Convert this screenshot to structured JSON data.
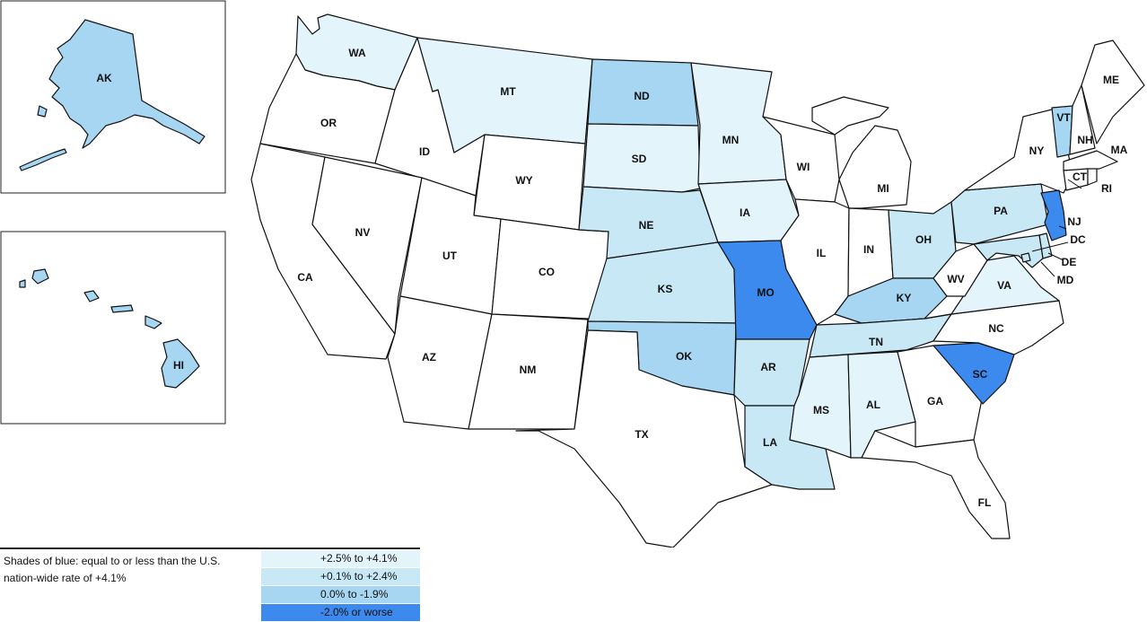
{
  "colors": {
    "tier1": "#e3f4fb",
    "tier2": "#c9e8f6",
    "tier3": "#a6d6f2",
    "tier4": "#3d8aee",
    "none": "#ffffff"
  },
  "states": [
    {
      "abbr": "AK",
      "tier": "tier3"
    },
    {
      "abbr": "HI",
      "tier": "tier3"
    },
    {
      "abbr": "WA",
      "tier": "tier1"
    },
    {
      "abbr": "OR",
      "tier": "none"
    },
    {
      "abbr": "CA",
      "tier": "none"
    },
    {
      "abbr": "ID",
      "tier": "none"
    },
    {
      "abbr": "NV",
      "tier": "none"
    },
    {
      "abbr": "MT",
      "tier": "tier1"
    },
    {
      "abbr": "WY",
      "tier": "none"
    },
    {
      "abbr": "UT",
      "tier": "none"
    },
    {
      "abbr": "CO",
      "tier": "none"
    },
    {
      "abbr": "AZ",
      "tier": "none"
    },
    {
      "abbr": "NM",
      "tier": "none"
    },
    {
      "abbr": "ND",
      "tier": "tier3"
    },
    {
      "abbr": "SD",
      "tier": "tier1"
    },
    {
      "abbr": "NE",
      "tier": "tier2"
    },
    {
      "abbr": "KS",
      "tier": "tier2"
    },
    {
      "abbr": "OK",
      "tier": "tier3"
    },
    {
      "abbr": "TX",
      "tier": "none"
    },
    {
      "abbr": "MN",
      "tier": "tier1"
    },
    {
      "abbr": "IA",
      "tier": "tier1"
    },
    {
      "abbr": "MO",
      "tier": "tier4"
    },
    {
      "abbr": "AR",
      "tier": "tier2"
    },
    {
      "abbr": "LA",
      "tier": "tier2"
    },
    {
      "abbr": "WI",
      "tier": "none"
    },
    {
      "abbr": "IL",
      "tier": "none"
    },
    {
      "abbr": "MI",
      "tier": "none"
    },
    {
      "abbr": "IN",
      "tier": "none"
    },
    {
      "abbr": "OH",
      "tier": "tier2"
    },
    {
      "abbr": "KY",
      "tier": "tier3"
    },
    {
      "abbr": "TN",
      "tier": "tier2"
    },
    {
      "abbr": "MS",
      "tier": "tier1"
    },
    {
      "abbr": "AL",
      "tier": "tier1"
    },
    {
      "abbr": "GA",
      "tier": "none"
    },
    {
      "abbr": "FL",
      "tier": "none"
    },
    {
      "abbr": "SC",
      "tier": "tier4"
    },
    {
      "abbr": "NC",
      "tier": "none"
    },
    {
      "abbr": "VA",
      "tier": "tier1"
    },
    {
      "abbr": "WV",
      "tier": "none"
    },
    {
      "abbr": "PA",
      "tier": "tier2"
    },
    {
      "abbr": "NY",
      "tier": "none"
    },
    {
      "abbr": "VT",
      "tier": "tier3"
    },
    {
      "abbr": "NH",
      "tier": "none"
    },
    {
      "abbr": "ME",
      "tier": "none"
    },
    {
      "abbr": "MA",
      "tier": "none"
    },
    {
      "abbr": "CT",
      "tier": "none"
    },
    {
      "abbr": "RI",
      "tier": "none"
    },
    {
      "abbr": "NJ",
      "tier": "tier4"
    },
    {
      "abbr": "DE",
      "tier": "tier2"
    },
    {
      "abbr": "MD",
      "tier": "tier2"
    },
    {
      "abbr": "DC",
      "tier": "tier2"
    }
  ],
  "legend": {
    "description": "Shades of blue: equal to or less than the U.S. nation-wide rate of +4.1%",
    "items": [
      {
        "label": "+2.5% to +4.1%",
        "color": "#e3f4fb"
      },
      {
        "label": "+0.1% to +2.4%",
        "color": "#c9e8f6"
      },
      {
        "label": "0.0% to -1.9%",
        "color": "#a6d6f2"
      },
      {
        "label": "-2.0% or worse",
        "color": "#3d8aee"
      }
    ]
  }
}
